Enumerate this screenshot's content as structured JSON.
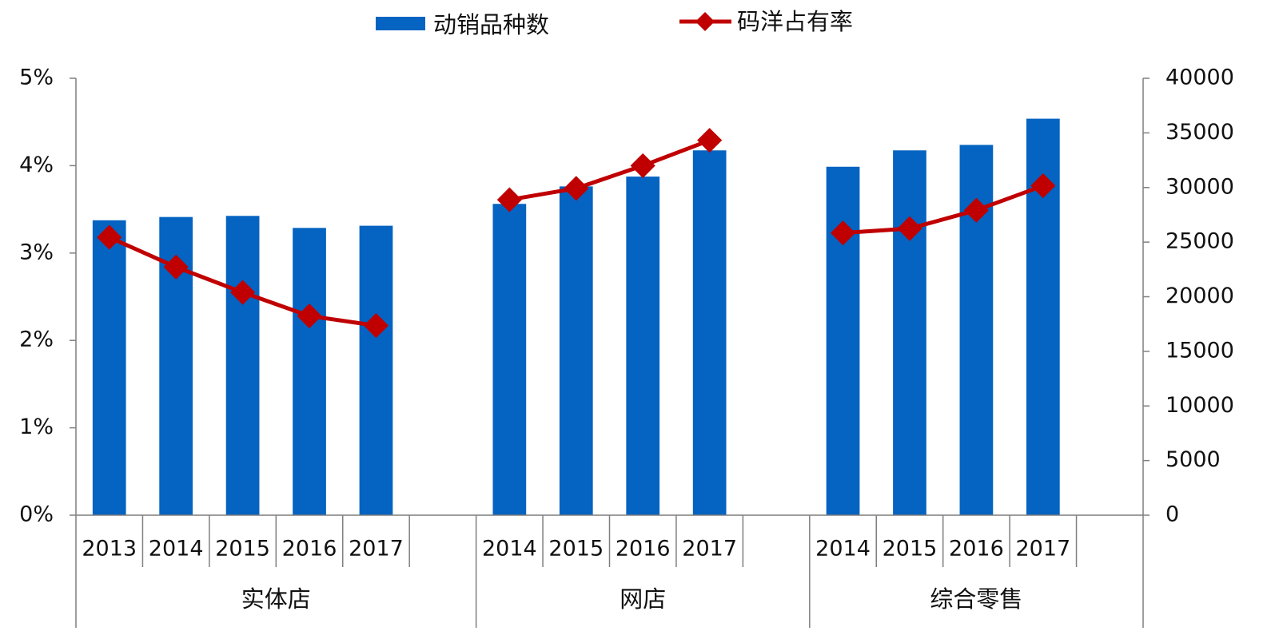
{
  "chart_data": {
    "type": "bar+line",
    "title": "",
    "legend": [
      {
        "name": "动销品种数",
        "kind": "bar",
        "axis": "right",
        "color": "#0563C1"
      },
      {
        "name": "码洋占有率",
        "kind": "line",
        "axis": "left",
        "color": "#C00000"
      }
    ],
    "legend_position": "top-center",
    "left_axis": {
      "min": 0,
      "max": 0.05,
      "step": 0.01,
      "ticks": [
        "0%",
        "1%",
        "2%",
        "3%",
        "4%",
        "5%"
      ]
    },
    "right_axis": {
      "min": 0,
      "max": 40000,
      "step": 5000,
      "ticks": [
        "0",
        "5000",
        "10000",
        "15000",
        "20000",
        "25000",
        "30000",
        "35000",
        "40000"
      ]
    },
    "grid": false,
    "groups": [
      {
        "name": "实体店",
        "years": [
          "2013",
          "2014",
          "2015",
          "2016",
          "2017"
        ],
        "bar_values": [
          27000,
          27300,
          27400,
          26300,
          26500
        ],
        "line_values": [
          0.0318,
          0.0284,
          0.0255,
          0.0228,
          0.0217
        ]
      },
      {
        "name": "网店",
        "years": [
          "2014",
          "2015",
          "2016",
          "2017"
        ],
        "bar_values": [
          28500,
          30100,
          31000,
          33400
        ],
        "line_values": [
          0.0361,
          0.0374,
          0.04,
          0.0429
        ]
      },
      {
        "name": "综合零售",
        "years": [
          "2014",
          "2015",
          "2016",
          "2017"
        ],
        "bar_values": [
          31900,
          33400,
          33900,
          36300
        ],
        "line_values": [
          0.0323,
          0.0328,
          0.0349,
          0.0377
        ]
      }
    ]
  }
}
